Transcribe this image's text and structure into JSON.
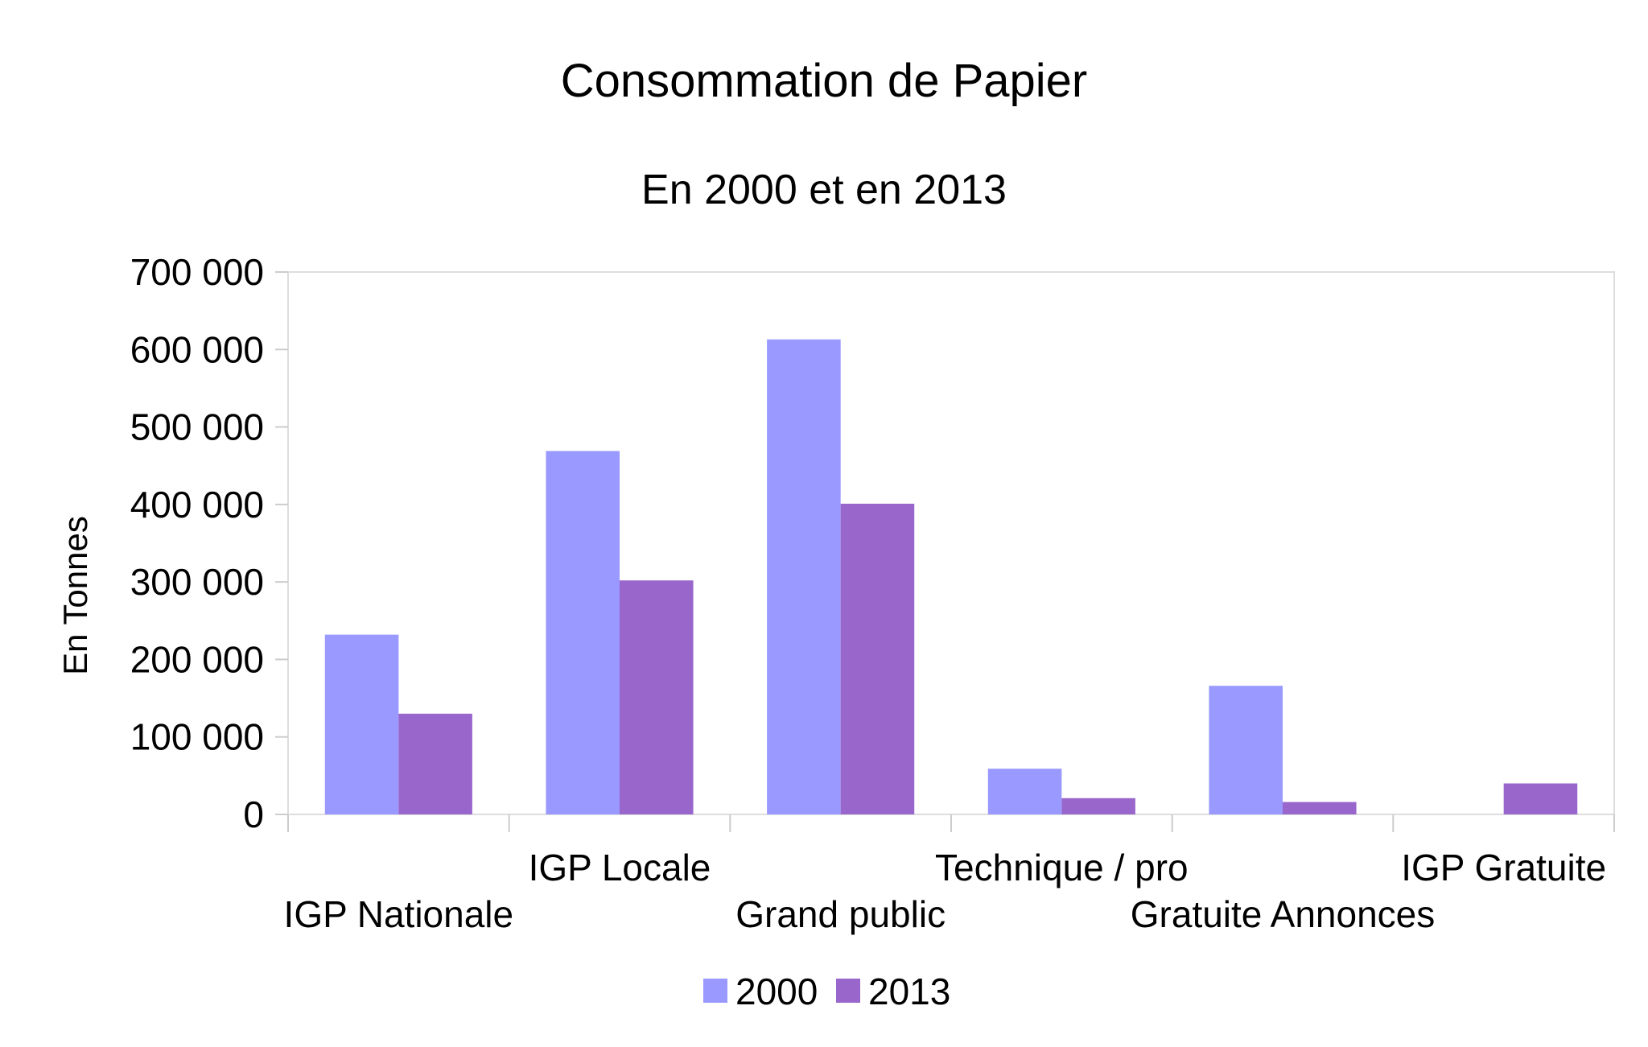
{
  "chart_data": {
    "type": "bar",
    "title": "Consommation de Papier",
    "subtitle": "En 2000 et en 2013",
    "xlabel": "",
    "ylabel": "En Tonnes",
    "ylim": [
      0,
      700000
    ],
    "y_ticks": [
      0,
      100000,
      200000,
      300000,
      400000,
      500000,
      600000,
      700000
    ],
    "y_tick_labels": [
      "0",
      "100 000",
      "200 000",
      "300 000",
      "400 000",
      "500 000",
      "600 000",
      "700 000"
    ],
    "categories": [
      "IGP Nationale",
      "IGP Locale",
      "Grand public",
      "Technique / pro",
      "Gratuite Annonces",
      "IGP Gratuite"
    ],
    "series": [
      {
        "name": "2000",
        "color": "#9999ff",
        "values": [
          232000,
          469000,
          613000,
          59000,
          166000,
          0
        ]
      },
      {
        "name": "2013",
        "color": "#9966cc",
        "values": [
          130000,
          302000,
          401000,
          21000,
          16000,
          40000
        ]
      }
    ],
    "grid": false,
    "legend": "bottom-center"
  }
}
